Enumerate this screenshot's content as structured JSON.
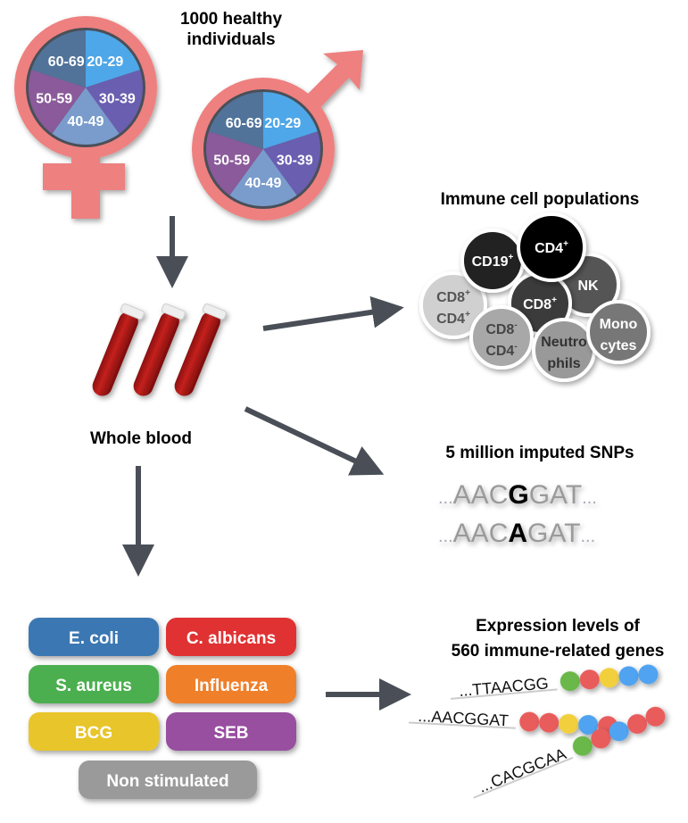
{
  "title": [
    "1000 healthy",
    "individuals"
  ],
  "age_groups": [
    "20-29",
    "30-39",
    "40-49",
    "50-59",
    "60-69"
  ],
  "age_colors": [
    "#4ea7e8",
    "#6a5eb0",
    "#7a9ccc",
    "#8a5a9a",
    "#51739a"
  ],
  "sex_symbols": [
    "female-symbol",
    "male-symbol"
  ],
  "symbol_color": "#ee8080",
  "whole_blood": "Whole blood",
  "immune": {
    "title": "Immune cell populations",
    "cells": [
      {
        "lines": [
          "CD19",
          ""
        ],
        "sup": [
          "+",
          ""
        ],
        "fill": "#222222",
        "text": "#ffffff"
      },
      {
        "lines": [
          "CD4",
          ""
        ],
        "sup": [
          "+",
          ""
        ],
        "fill": "#000000",
        "text": "#ffffff"
      },
      {
        "lines": [
          "NK",
          ""
        ],
        "sup": [
          "",
          ""
        ],
        "fill": "#555555",
        "text": "#ffffff"
      },
      {
        "lines": [
          "CD8",
          ""
        ],
        "sup": [
          "+",
          ""
        ],
        "fill": "#3a3a3a",
        "text": "#ffffff"
      },
      {
        "lines": [
          "CD8",
          "CD4"
        ],
        "sup": [
          "+",
          "+"
        ],
        "fill": "#d0d0d0",
        "text": "#555555"
      },
      {
        "lines": [
          "CD8",
          "CD4"
        ],
        "sup": [
          "-",
          "-"
        ],
        "fill": "#a8a8a8",
        "text": "#444444"
      },
      {
        "lines": [
          "Neutro",
          "phils"
        ],
        "sup": [
          "",
          ""
        ],
        "fill": "#999999",
        "text": "#333333"
      },
      {
        "lines": [
          "Mono",
          "cytes"
        ],
        "sup": [
          "",
          ""
        ],
        "fill": "#777777",
        "text": "#ffffff"
      }
    ]
  },
  "snps": {
    "title": "5 million imputed SNPs",
    "rows": [
      {
        "pre": "AAC",
        "snp": "G",
        "post": "GAT"
      },
      {
        "pre": "AAC",
        "snp": "A",
        "post": "GAT"
      }
    ],
    "ellipsis": "..."
  },
  "stimuli": [
    {
      "label": "E. coli",
      "color": "#3a78b3"
    },
    {
      "label": "C. albicans",
      "color": "#e03131"
    },
    {
      "label": "S. aureus",
      "color": "#4caf50"
    },
    {
      "label": "Influenza",
      "color": "#f07f2a"
    },
    {
      "label": "BCG",
      "color": "#e8c52a"
    },
    {
      "label": "SEB",
      "color": "#9850a0"
    },
    {
      "label": "Non stimulated",
      "color": "#9a9a9a"
    }
  ],
  "expression": {
    "title": [
      "Expression levels of",
      "560 immune-related genes"
    ],
    "sequences": [
      {
        "text": "...TTAACGG",
        "beads": [
          "green",
          "red",
          "yellow",
          "blue",
          "blue"
        ]
      },
      {
        "text": "...AACGGAT",
        "beads": [
          "red",
          "red",
          "yellow",
          "blue",
          "red"
        ]
      },
      {
        "text": "...CACGCAA",
        "beads": [
          "green",
          "red",
          "blue",
          "red",
          "red"
        ]
      }
    ],
    "bead_colors": {
      "green": "#6ab84a",
      "red": "#e85c5c",
      "yellow": "#f2cf3c",
      "blue": "#4fa3f0"
    }
  }
}
